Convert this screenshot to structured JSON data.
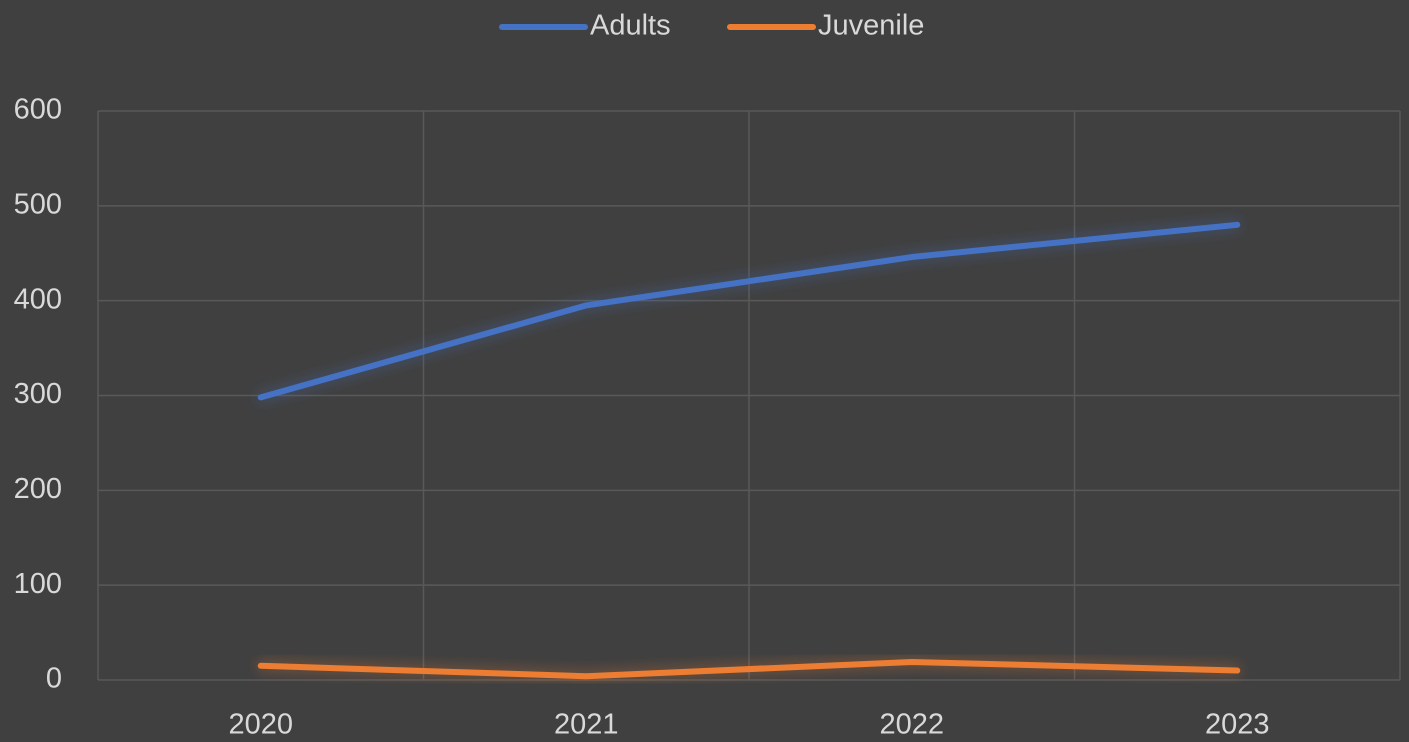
{
  "chart_data": {
    "type": "line",
    "categories": [
      "2020",
      "2021",
      "2022",
      "2023"
    ],
    "series": [
      {
        "name": "Adults",
        "color": "#4472c4",
        "values": [
          298,
          395,
          446,
          480
        ]
      },
      {
        "name": "Juvenile",
        "color": "#ed7d31",
        "values": [
          15,
          4,
          19,
          10
        ]
      }
    ],
    "ylim": [
      0,
      600
    ],
    "yticks": [
      0,
      100,
      200,
      300,
      400,
      500,
      600
    ],
    "grid": true,
    "legend": "top"
  }
}
